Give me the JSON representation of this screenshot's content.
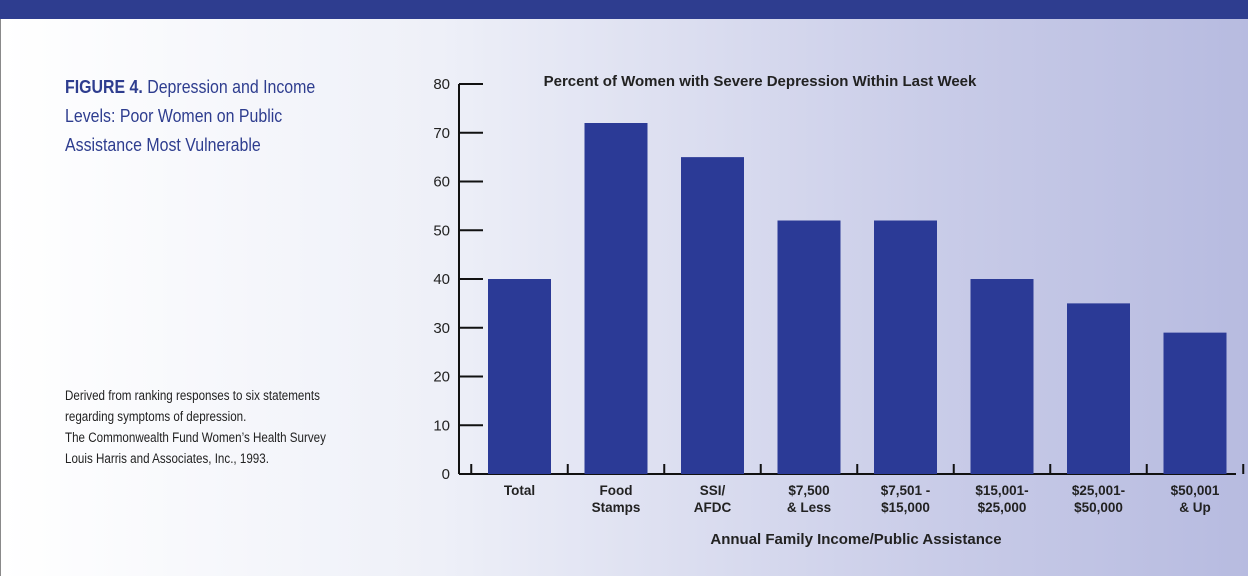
{
  "figure": {
    "label": "FIGURE 4.",
    "caption": "Depression and Income Levels: Poor Women on Public Assistance Most Vulnerable"
  },
  "source_lines": [
    "Derived from ranking responses to six statements",
    "regarding symptoms of depression.",
    "The Commonwealth Fund Women’s Health Survey",
    "Louis Harris and Associates, Inc., 1993."
  ],
  "colors": {
    "bar": "#2b3a96",
    "header": "#2e3d8f",
    "title": "#2e3d8f"
  },
  "chart_data": {
    "type": "bar",
    "title": "Percent of Women with Severe Depression Within Last Week",
    "xlabel": "Annual Family Income/Public Assistance",
    "ylabel": "",
    "ylim": [
      0,
      80
    ],
    "yticks": [
      0,
      10,
      20,
      30,
      40,
      50,
      60,
      70,
      80
    ],
    "categories": [
      [
        "Total"
      ],
      [
        "Food",
        "Stamps"
      ],
      [
        "SSI/",
        "AFDC"
      ],
      [
        "$7,500",
        "& Less"
      ],
      [
        "$7,501 -",
        "$15,000"
      ],
      [
        "$15,001-",
        "$25,000"
      ],
      [
        "$25,001-",
        "$50,000"
      ],
      [
        "$50,001",
        "& Up"
      ]
    ],
    "values": [
      40,
      72,
      65,
      52,
      52,
      40,
      35,
      29
    ],
    "grid": false,
    "legend": "none"
  }
}
